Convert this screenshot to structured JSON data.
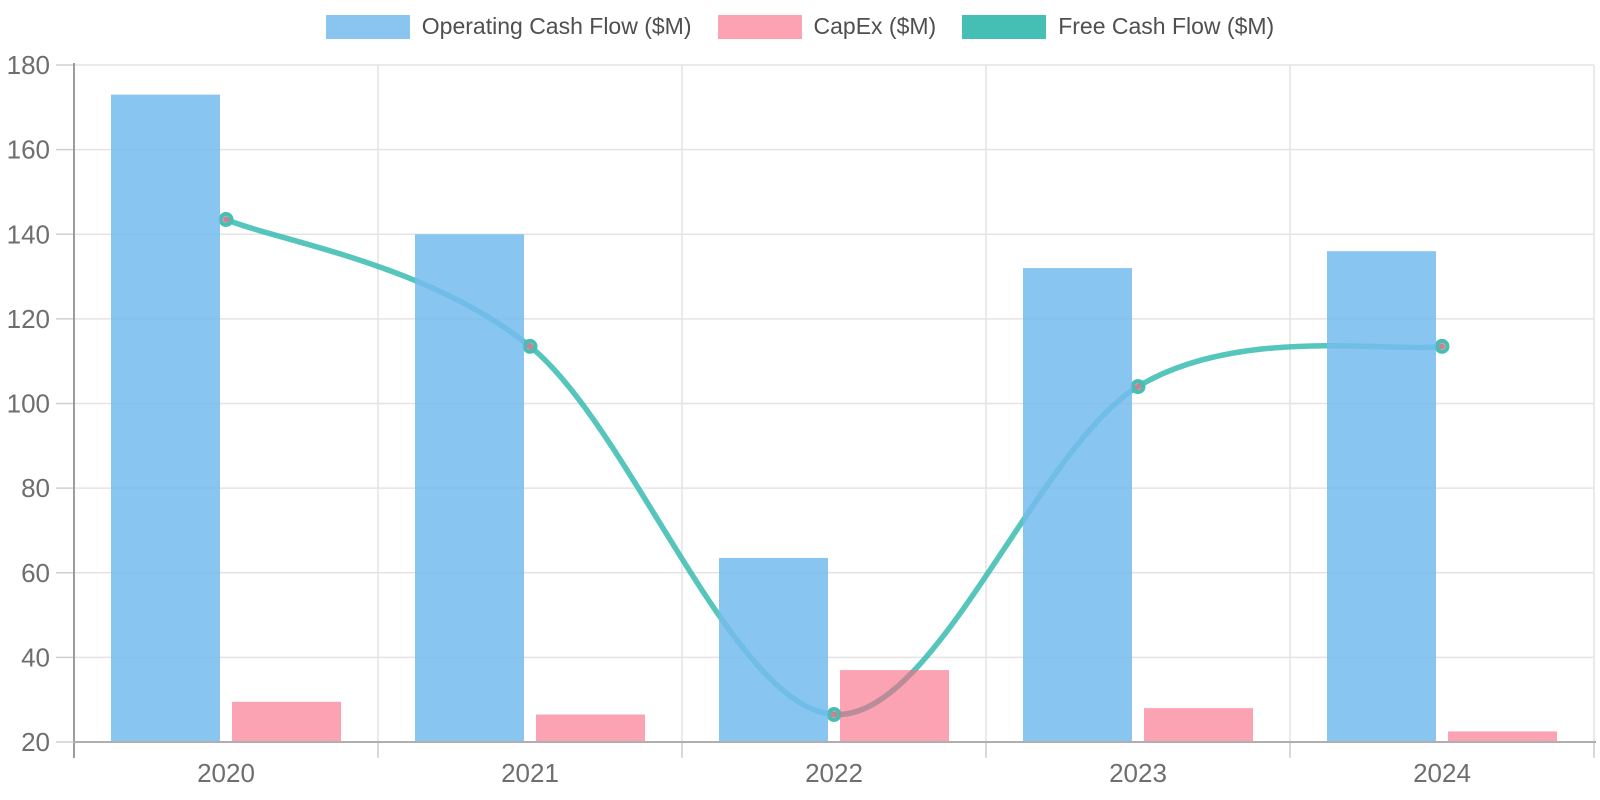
{
  "chart_data": {
    "type": "combo-bar-line",
    "title": "",
    "xlabel": "",
    "ylabel": "",
    "categories": [
      "2020",
      "2021",
      "2022",
      "2023",
      "2024"
    ],
    "series": [
      {
        "name": "Operating Cash Flow ($M)",
        "type": "bar",
        "color": "#8AC5F0",
        "fill": "rgba(116,187,238,0.85)",
        "values": [
          173,
          140,
          63.5,
          132,
          136
        ]
      },
      {
        "name": "CapEx ($M)",
        "type": "bar",
        "color": "#FCA3B3",
        "fill": "rgba(250,102,128,0.6)",
        "values": [
          29.5,
          26.5,
          37,
          28,
          22.5
        ]
      },
      {
        "name": "Free Cash Flow ($M)",
        "type": "line",
        "color": "#45BFB3",
        "stroke": "rgba(56,188,177,0.85)",
        "marker_fill": "rgba(250,102,128,0.65)",
        "values": [
          143.5,
          113.5,
          26.5,
          104,
          113.5
        ]
      }
    ],
    "ylim": [
      20,
      180
    ],
    "ytick_step": 20,
    "yticks": [
      20,
      40,
      60,
      80,
      100,
      120,
      140,
      160,
      180
    ],
    "grid": true,
    "legend_position": "top",
    "colors": {
      "gridline": "#E4E4E4",
      "tick_mark": "#CFCFCF",
      "y_axis_line": "#9C9C9C",
      "x_axis_line": "#AFAFAF",
      "tick_label_text": "#6E6E6E",
      "legend_text": "#4F4F4F",
      "background": "#FFFFFF"
    }
  }
}
